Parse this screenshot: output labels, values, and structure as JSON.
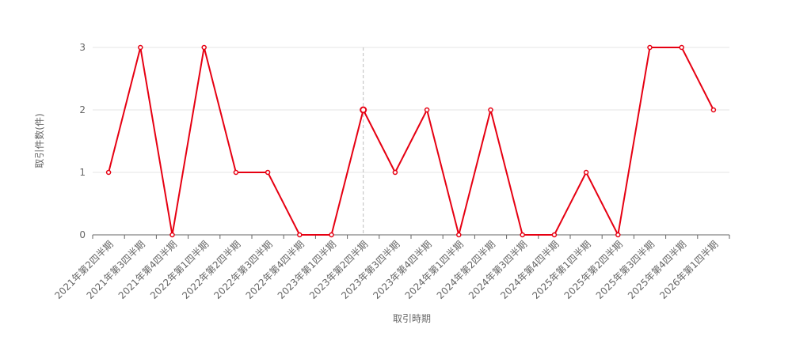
{
  "chart_data": {
    "type": "line",
    "x_label": "取引時期",
    "y_label": "取引件数(件)",
    "categories": [
      "2021年第2四半期",
      "2021年第3四半期",
      "2021年第4四半期",
      "2022年第1四半期",
      "2022年第2四半期",
      "2022年第3四半期",
      "2022年第4四半期",
      "2023年第1四半期",
      "2023年第2四半期",
      "2023年第3四半期",
      "2023年第4四半期",
      "2024年第1四半期",
      "2024年第2四半期",
      "2024年第3四半期",
      "2024年第4四半期",
      "2025年第1四半期",
      "2025年第2四半期",
      "2025年第3四半期",
      "2025年第4四半期",
      "2026年第1四半期"
    ],
    "values": [
      1,
      3,
      0,
      3,
      1,
      1,
      0,
      0,
      2,
      1,
      2,
      0,
      2,
      0,
      0,
      1,
      0,
      3,
      3,
      2
    ],
    "color": "#e60012",
    "ylim": [
      0,
      3
    ],
    "yticks": [
      0,
      1,
      2,
      3
    ],
    "grid": true
  }
}
